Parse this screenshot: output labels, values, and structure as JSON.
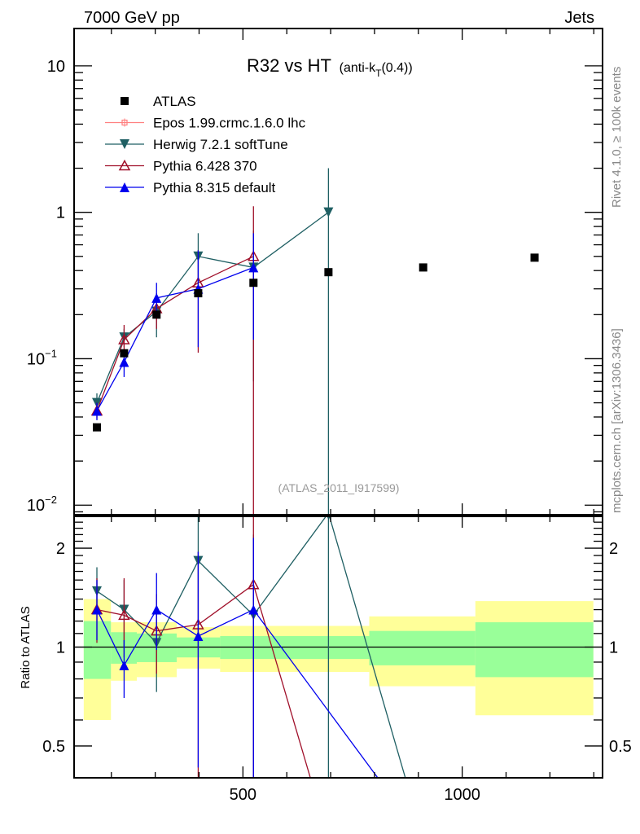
{
  "header": {
    "left": "7000 GeV pp",
    "right": "Jets"
  },
  "side_labels": {
    "rivet": "Rivet 4.1.0, ≥ 100k events",
    "mcplots": "mcplots.cern.ch [arXiv:1306.3436]"
  },
  "analysis_id": "(ATLAS_2011_I917599)",
  "chart_data": {
    "type": "scatter",
    "title": "R32 vs HT",
    "title_suffix": "(anti-k",
    "title_sub": "T",
    "title_end": "(0.4))",
    "xlabel": "",
    "ylabel": "",
    "ratio_ylabel": "Ratio to ATLAS",
    "xlim": [
      115,
      1320
    ],
    "ylim": [
      0.0086,
      18
    ],
    "ratio_ylim": [
      0.4,
      2.5
    ],
    "yscale": "log",
    "ratio_yscale": "log",
    "x_ticks": [
      {
        "v": 500,
        "label": "500"
      },
      {
        "v": 1000,
        "label": "1000"
      }
    ],
    "y_ticks": [
      {
        "v": 10,
        "label": "10",
        "exp": ""
      },
      {
        "v": 1,
        "label": "1",
        "exp": ""
      },
      {
        "v": 0.1,
        "label": "10",
        "exp": "−1"
      },
      {
        "v": 0.01,
        "label": "10",
        "exp": "−2"
      }
    ],
    "ratio_ticks": [
      {
        "v": 2,
        "label": "2"
      },
      {
        "v": 1,
        "label": "1"
      },
      {
        "v": 0.5,
        "label": "0.5"
      }
    ],
    "legend_position": "top-left",
    "data": {
      "name": "ATLAS",
      "color": "#000000",
      "x": [
        167,
        229,
        303,
        398,
        524,
        695,
        911,
        1165
      ],
      "y": [
        0.034,
        0.109,
        0.2,
        0.28,
        0.33,
        0.39,
        0.42,
        0.49
      ],
      "bin_edges": [
        137,
        199,
        258,
        349,
        448,
        788,
        1030,
        1299
      ],
      "band_stat": [
        [
          0.8,
          1.2
        ],
        [
          0.89,
          1.11
        ],
        [
          0.9,
          1.1
        ],
        [
          0.93,
          1.07
        ],
        [
          0.92,
          1.08
        ],
        [
          0.88,
          1.12
        ],
        [
          0.81,
          1.19
        ]
      ],
      "band_total": [
        [
          0.6,
          1.4
        ],
        [
          0.79,
          1.19
        ],
        [
          0.81,
          1.19
        ],
        [
          0.86,
          1.15
        ],
        [
          0.84,
          1.16
        ],
        [
          0.76,
          1.24
        ],
        [
          0.62,
          1.38
        ]
      ]
    },
    "series": [
      {
        "name": "Epos 1.99.crmc.1.6.0 lhc",
        "color": "#ff8080",
        "marker": "open-square-cross",
        "x": [],
        "y": [],
        "err": [],
        "ratio": [],
        "ratio_err": []
      },
      {
        "name": "Herwig 7.2.1 softTune",
        "color": "#1f5f63",
        "marker": "down-triangle",
        "x": [
          167,
          229,
          303,
          398,
          524,
          695
        ],
        "y": [
          0.05,
          0.14,
          0.21,
          0.5,
          0.42,
          1.0
        ],
        "err": [
          [
            0.043,
            0.058
          ],
          [
            0.12,
            0.16
          ],
          [
            0.14,
            0.28
          ],
          [
            0.3,
            0.72
          ],
          [
            0.07,
            0.75
          ],
          [
            0.0001,
            2.0
          ]
        ],
        "ratio_x": [
          167,
          229,
          303,
          398,
          524,
          695,
          911
        ],
        "ratio": [
          1.48,
          1.3,
          1.03,
          1.83,
          1.25,
          2.56,
          0
        ],
        "ratio_err": [
          [
            1.27,
            1.75
          ],
          [
            1.0,
            1.6
          ],
          [
            0.73,
            1.33
          ],
          [
            1.0,
            3.0
          ],
          [
            0.2,
            2.2
          ],
          [
            0.01,
            5
          ],
          [
            0,
            0
          ]
        ]
      },
      {
        "name": "Pythia 6.428 370",
        "color": "#a0102a",
        "marker": "open-up-triangle",
        "x": [
          167,
          229,
          303,
          398,
          524
        ],
        "y": [
          0.044,
          0.135,
          0.22,
          0.33,
          0.5
        ],
        "err": [
          [
            0.039,
            0.05
          ],
          [
            0.11,
            0.17
          ],
          [
            0.16,
            0.28
          ],
          [
            0.11,
            0.55
          ],
          [
            0.0001,
            1.1
          ]
        ],
        "ratio_x": [
          167,
          229,
          303,
          398,
          524,
          695
        ],
        "ratio": [
          1.3,
          1.25,
          1.12,
          1.17,
          1.55,
          0
        ],
        "ratio_err": [
          [
            1.03,
            1.62
          ],
          [
            0.93,
            1.62
          ],
          [
            0.83,
            1.45
          ],
          [
            0.01,
            1.95
          ],
          [
            0.01,
            3.3
          ],
          [
            0,
            0
          ]
        ]
      },
      {
        "name": "Pythia 8.315 default",
        "color": "#0000ee",
        "marker": "up-triangle",
        "x": [
          167,
          229,
          303,
          398,
          524
        ],
        "y": [
          0.044,
          0.095,
          0.26,
          0.3,
          0.42
        ],
        "err": [
          [
            0.038,
            0.05
          ],
          [
            0.075,
            0.115
          ],
          [
            0.19,
            0.33
          ],
          [
            0.12,
            0.55
          ],
          [
            0.135,
            0.72
          ]
        ],
        "ratio_x": [
          167,
          229,
          303,
          398,
          524,
          911
        ],
        "ratio": [
          1.3,
          0.88,
          1.3,
          1.08,
          1.3,
          0
        ],
        "ratio_err": [
          [
            1.05,
            1.6
          ],
          [
            0.7,
            1.05
          ],
          [
            0.98,
            1.68
          ],
          [
            0.43,
            1.95
          ],
          [
            0.01,
            2.15
          ],
          [
            0,
            0
          ]
        ]
      }
    ]
  }
}
